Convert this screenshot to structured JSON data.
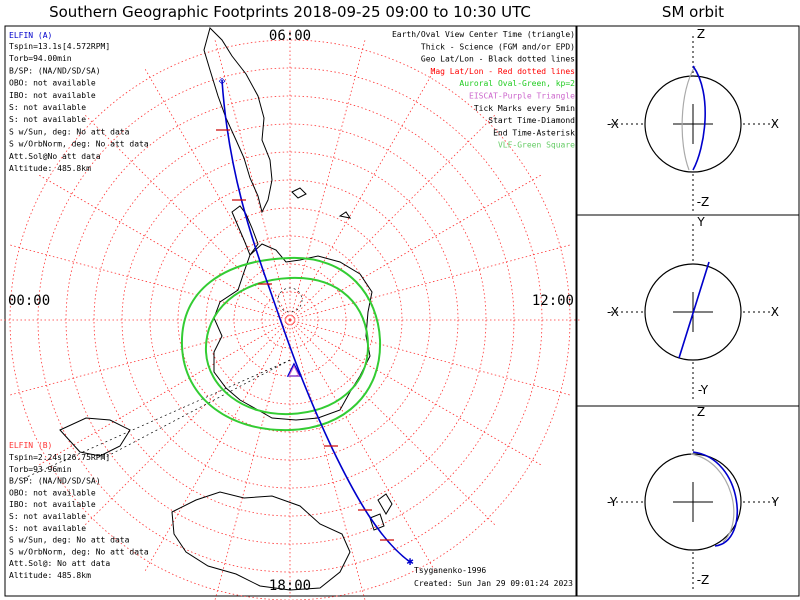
{
  "title": "Southern Geographic Footprints 2018-09-25 09:00 to 10:30 UTC",
  "sm_title": "SM orbit",
  "hour_labels": {
    "top": "06:00",
    "left": "00:00",
    "right": "12:00",
    "bottom": "18:00"
  },
  "elfin_a": {
    "name": "ELFIN (A)",
    "lines": [
      "Tspin=13.1s[4.572RPM]",
      "Torb=94.00min",
      "B/SP: (NA/ND/SD/SA)",
      "OBO: not available",
      "IBO: not available",
      "S: not available",
      "S: not available",
      "S w/Sun, deg: No att data",
      "S w/OrbNorm, deg: No att data",
      "Att.Sol@No att data",
      "Altitude: 485.8km"
    ]
  },
  "elfin_b": {
    "name": "ELFIN (B)",
    "lines": [
      "Tspin=2.24s[26.75RPM]",
      "Torb=93.96min",
      "B/SP: (NA/ND/SD/SA)",
      "OBO: not available",
      "IBO: not available",
      "S: not available",
      "S: not available",
      "S w/Sun, deg: No att data",
      "S w/OrbNorm, deg: No att data",
      "Att.Sol@: No att data",
      "Altitude: 485.8km"
    ]
  },
  "legend": [
    {
      "text": "Earth/Oval View Center Time (triangle)",
      "color": "#000000"
    },
    {
      "text": "Thick - Science (FGM and/or EPD)",
      "color": "#000000"
    },
    {
      "text": "Geo Lat/Lon - Black dotted lines",
      "color": "#000000"
    },
    {
      "text": "Mag Lat/Lon - Red dotted lines",
      "color": "#ff0000"
    },
    {
      "text": "Auroral Oval-Green, kp=2",
      "color": "#22cc22"
    },
    {
      "text": "EISCAT-Purple Triangle",
      "color": "#cc66cc"
    },
    {
      "text": "Tick Marks every 5min",
      "color": "#000000"
    },
    {
      "text": "Start Time-Diamond",
      "color": "#000000"
    },
    {
      "text": "End Time-Asterisk",
      "color": "#000000"
    },
    {
      "text": "VLF-Green Square",
      "color": "#66cc66"
    }
  ],
  "footer": {
    "model": "Tsyganenko-1996",
    "created": "Created: Sun Jan 29 09:01:24 2023"
  },
  "sm_panels": [
    {
      "top": "Z",
      "bottom": "-Z",
      "left": "-X",
      "right": "X"
    },
    {
      "top": "Y",
      "bottom": "-Y",
      "left": "-X",
      "right": "X"
    },
    {
      "top": "Z",
      "bottom": "-Z",
      "left": "-Y",
      "right": "Y"
    }
  ],
  "colors": {
    "orbit": "#0000cc",
    "mag_grid": "#ff3333",
    "oval": "#33cc33",
    "tick": "#cc0000"
  },
  "chart_data": {
    "type": "polar-map",
    "title": "Southern Geographic Footprints 2018-09-25 09:00 to 10:30 UTC",
    "time_labels": [
      "06:00",
      "00:00",
      "12:00",
      "18:00"
    ],
    "auroral_oval_kp": 2,
    "tick_interval_min": 5,
    "footprint_model": "Tsyganenko-1996"
  }
}
